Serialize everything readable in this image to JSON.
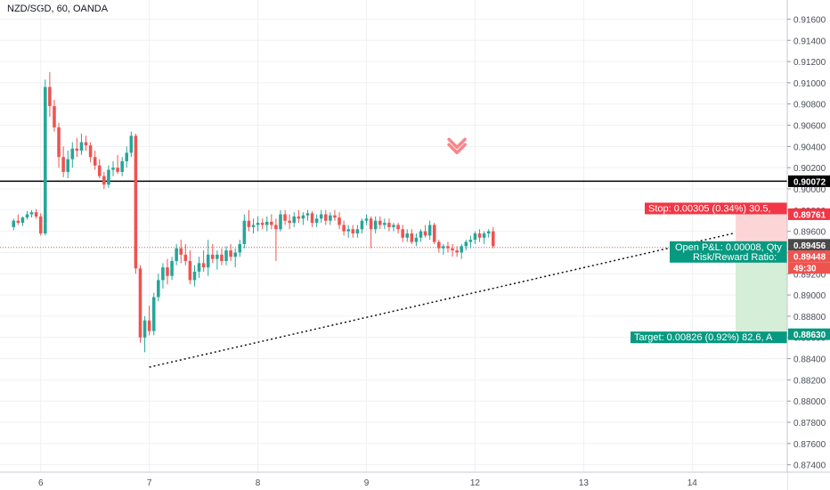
{
  "header": {
    "symbol_title": "NZD/SGD, 60, OANDA"
  },
  "colors": {
    "up": "#26a69a",
    "down": "#ef5350",
    "stop_zone": "#fcd6d6",
    "target_zone": "#d5eed7",
    "stop_label_bg": "#f23645",
    "target_label_bg": "#089981",
    "horizontal_line": "#000000",
    "last_price_line": "#ef5350",
    "grid": "#eef0f3",
    "axis_text": "#4a4e58"
  },
  "icons": {
    "sell_arrow": "down-arrow-icon"
  },
  "chart_data": {
    "type": "candlestick",
    "title": "NZD/SGD, 60, OANDA",
    "y_axis": {
      "ticks": [
        "0.91600",
        "0.91400",
        "0.91200",
        "0.91000",
        "0.90800",
        "0.90600",
        "0.90400",
        "0.90200",
        "0.90000",
        "0.89800",
        "0.89600",
        "0.89400",
        "0.89200",
        "0.89000",
        "0.88800",
        "0.88600",
        "0.88400",
        "0.88200",
        "0.88000",
        "0.87800",
        "0.87600",
        "0.87400"
      ],
      "range": [
        0.8733,
        0.9178
      ]
    },
    "x_axis": {
      "labels": [
        "6",
        "7",
        "8",
        "9",
        "12",
        "13",
        "14"
      ],
      "label_bars": [
        6,
        30,
        54,
        78,
        102,
        126,
        150
      ],
      "bars_visible": [
        -3,
        171
      ]
    },
    "candles": [
      [
        0.8964,
        0.8972,
        0.8961,
        0.897
      ],
      [
        0.897,
        0.8976,
        0.8966,
        0.8968
      ],
      [
        0.8968,
        0.8974,
        0.8965,
        0.8973
      ],
      [
        0.8973,
        0.8979,
        0.8971,
        0.8976
      ],
      [
        0.8976,
        0.898,
        0.8973,
        0.8978
      ],
      [
        0.8978,
        0.8981,
        0.8972,
        0.8974
      ],
      [
        0.8974,
        0.8977,
        0.8956,
        0.8958
      ],
      [
        0.8958,
        0.9103,
        0.8956,
        0.9096
      ],
      [
        0.9096,
        0.911,
        0.9068,
        0.9078
      ],
      [
        0.9078,
        0.9084,
        0.9054,
        0.9058
      ],
      [
        0.9058,
        0.9062,
        0.902,
        0.903
      ],
      [
        0.903,
        0.904,
        0.9011,
        0.9016
      ],
      [
        0.9016,
        0.9036,
        0.901,
        0.9028
      ],
      [
        0.9028,
        0.9044,
        0.902,
        0.9038
      ],
      [
        0.9038,
        0.9048,
        0.903,
        0.9036
      ],
      [
        0.9036,
        0.9052,
        0.9032,
        0.9044
      ],
      [
        0.9044,
        0.905,
        0.9036,
        0.9041
      ],
      [
        0.9041,
        0.9044,
        0.9025,
        0.903
      ],
      [
        0.903,
        0.9036,
        0.9018,
        0.9022
      ],
      [
        0.9022,
        0.9028,
        0.901,
        0.9012
      ],
      [
        0.9012,
        0.9016,
        0.9,
        0.9004
      ],
      [
        0.9004,
        0.9022,
        0.9001,
        0.9018
      ],
      [
        0.9018,
        0.9026,
        0.9012,
        0.902
      ],
      [
        0.902,
        0.9032,
        0.9014,
        0.9016
      ],
      [
        0.9016,
        0.903,
        0.9012,
        0.9026
      ],
      [
        0.9026,
        0.904,
        0.902,
        0.9034
      ],
      [
        0.9034,
        0.9054,
        0.903,
        0.905
      ],
      [
        0.905,
        0.9052,
        0.892,
        0.8925
      ],
      [
        0.8925,
        0.8928,
        0.8855,
        0.886
      ],
      [
        0.886,
        0.888,
        0.8846,
        0.8876
      ],
      [
        0.8876,
        0.889,
        0.8862,
        0.8866
      ],
      [
        0.8866,
        0.8902,
        0.8862,
        0.8898
      ],
      [
        0.8898,
        0.892,
        0.8894,
        0.8914
      ],
      [
        0.8914,
        0.893,
        0.8906,
        0.8926
      ],
      [
        0.8926,
        0.8934,
        0.891,
        0.8918
      ],
      [
        0.8918,
        0.8936,
        0.8914,
        0.8932
      ],
      [
        0.8932,
        0.8948,
        0.8928,
        0.8944
      ],
      [
        0.8944,
        0.8952,
        0.893,
        0.8938
      ],
      [
        0.8938,
        0.8948,
        0.8928,
        0.8932
      ],
      [
        0.8932,
        0.8942,
        0.891,
        0.8914
      ],
      [
        0.8914,
        0.8928,
        0.8908,
        0.8922
      ],
      [
        0.8922,
        0.8936,
        0.8916,
        0.893
      ],
      [
        0.893,
        0.8942,
        0.8922,
        0.8926
      ],
      [
        0.8926,
        0.8952,
        0.8918,
        0.8938
      ],
      [
        0.8938,
        0.8948,
        0.893,
        0.8934
      ],
      [
        0.8934,
        0.8942,
        0.8924,
        0.8938
      ],
      [
        0.8938,
        0.8944,
        0.8928,
        0.8932
      ],
      [
        0.8932,
        0.8946,
        0.8928,
        0.8942
      ],
      [
        0.8942,
        0.8948,
        0.8932,
        0.8936
      ],
      [
        0.8936,
        0.8944,
        0.8926,
        0.894
      ],
      [
        0.894,
        0.8952,
        0.8936,
        0.8948
      ],
      [
        0.8948,
        0.8976,
        0.8944,
        0.897
      ],
      [
        0.897,
        0.898,
        0.896,
        0.8964
      ],
      [
        0.8964,
        0.8972,
        0.8958,
        0.8966
      ],
      [
        0.8966,
        0.8974,
        0.896,
        0.8968
      ],
      [
        0.8968,
        0.8972,
        0.8962,
        0.8966
      ],
      [
        0.8966,
        0.8974,
        0.896,
        0.8969
      ],
      [
        0.8969,
        0.8976,
        0.8962,
        0.8966
      ],
      [
        0.8966,
        0.8972,
        0.8932,
        0.8962
      ],
      [
        0.8962,
        0.898,
        0.896,
        0.8976
      ],
      [
        0.8976,
        0.898,
        0.8966,
        0.897
      ],
      [
        0.897,
        0.8976,
        0.8962,
        0.8968
      ],
      [
        0.8968,
        0.8978,
        0.8964,
        0.8974
      ],
      [
        0.8974,
        0.898,
        0.8968,
        0.8972
      ],
      [
        0.8972,
        0.8978,
        0.8966,
        0.8975
      ],
      [
        0.8975,
        0.898,
        0.897,
        0.8977
      ],
      [
        0.8977,
        0.8979,
        0.8964,
        0.8968
      ],
      [
        0.8968,
        0.8976,
        0.8964,
        0.8972
      ],
      [
        0.8972,
        0.898,
        0.8968,
        0.8976
      ],
      [
        0.8976,
        0.898,
        0.8966,
        0.897
      ],
      [
        0.897,
        0.8978,
        0.8966,
        0.8975
      ],
      [
        0.8975,
        0.898,
        0.897,
        0.8973
      ],
      [
        0.8973,
        0.8978,
        0.8962,
        0.8966
      ],
      [
        0.8966,
        0.897,
        0.8956,
        0.896
      ],
      [
        0.896,
        0.8966,
        0.8954,
        0.8962
      ],
      [
        0.8962,
        0.8966,
        0.8954,
        0.8958
      ],
      [
        0.8958,
        0.8966,
        0.8954,
        0.8962
      ],
      [
        0.8962,
        0.8972,
        0.8958,
        0.897
      ],
      [
        0.897,
        0.8976,
        0.8966,
        0.8972
      ],
      [
        0.8972,
        0.8974,
        0.8944,
        0.8962
      ],
      [
        0.8962,
        0.8974,
        0.8958,
        0.897
      ],
      [
        0.897,
        0.8974,
        0.8962,
        0.8966
      ],
      [
        0.8966,
        0.8972,
        0.8962,
        0.8968
      ],
      [
        0.8968,
        0.8972,
        0.896,
        0.8964
      ],
      [
        0.8964,
        0.8968,
        0.896,
        0.8966
      ],
      [
        0.8966,
        0.8968,
        0.8958,
        0.8962
      ],
      [
        0.8962,
        0.8966,
        0.895,
        0.8954
      ],
      [
        0.8954,
        0.8962,
        0.895,
        0.8958
      ],
      [
        0.8958,
        0.8962,
        0.8948,
        0.895
      ],
      [
        0.895,
        0.8958,
        0.8946,
        0.8954
      ],
      [
        0.8954,
        0.8962,
        0.895,
        0.896
      ],
      [
        0.896,
        0.8966,
        0.8954,
        0.8956
      ],
      [
        0.8956,
        0.897,
        0.8952,
        0.8966
      ],
      [
        0.8966,
        0.8968,
        0.8948,
        0.895
      ],
      [
        0.895,
        0.8952,
        0.894,
        0.8944
      ],
      [
        0.8944,
        0.8948,
        0.8938,
        0.8946
      ],
      [
        0.8946,
        0.895,
        0.894,
        0.8944
      ],
      [
        0.8944,
        0.8948,
        0.8936,
        0.8942
      ],
      [
        0.8942,
        0.8946,
        0.8936,
        0.894
      ],
      [
        0.894,
        0.8948,
        0.8934,
        0.8946
      ],
      [
        0.8946,
        0.8952,
        0.8942,
        0.895
      ],
      [
        0.895,
        0.8956,
        0.8944,
        0.8952
      ],
      [
        0.8952,
        0.896,
        0.8948,
        0.8958
      ],
      [
        0.8958,
        0.8962,
        0.895,
        0.8954
      ],
      [
        0.8954,
        0.896,
        0.8948,
        0.8958
      ],
      [
        0.8958,
        0.8962,
        0.8954,
        0.896
      ],
      [
        0.896,
        0.8964,
        0.8944,
        0.8946
      ]
    ],
    "horizontal_line": {
      "price": 0.90072,
      "label": "0.90072"
    },
    "last_price": {
      "price": 0.89448,
      "label": "0.89448"
    },
    "trendline": {
      "start": {
        "bar": 30,
        "price": 0.8832
      },
      "end": {
        "bar": 159,
        "price": 0.8958
      }
    },
    "sell_arrow": {
      "bar": 98,
      "price": 0.904
    },
    "position": {
      "entry": 0.89456,
      "stop": 0.89761,
      "target": 0.8863,
      "start_bar": 159,
      "stop_label": "Stop: 0.00305 (0.34%) 30.5,",
      "target_label": "Target: 0.00826 (0.92%) 82.6, A",
      "pnl_label": "Open P&L: 0.00008, Qty",
      "rr_label": "Risk/Reward Ratio:"
    },
    "price_badges": {
      "stop": "0.89761",
      "entry": "0.89456",
      "last": "0.89448",
      "countdown": "49:30",
      "target": "0.88630"
    }
  }
}
